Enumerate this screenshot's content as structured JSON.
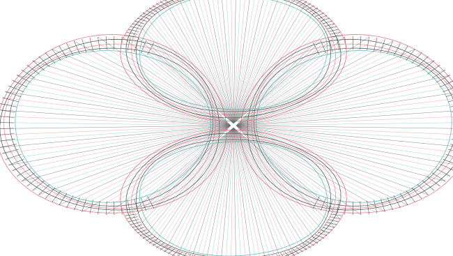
{
  "figure": {
    "kind": "wireframe-line-drawing",
    "background": "#ffffff",
    "palette": {
      "outer": "#e06b78",
      "dark": "#2a2a2a",
      "cyan": "#4fb3b3"
    },
    "lobes": [
      "left",
      "right",
      "top",
      "bottom"
    ]
  }
}
